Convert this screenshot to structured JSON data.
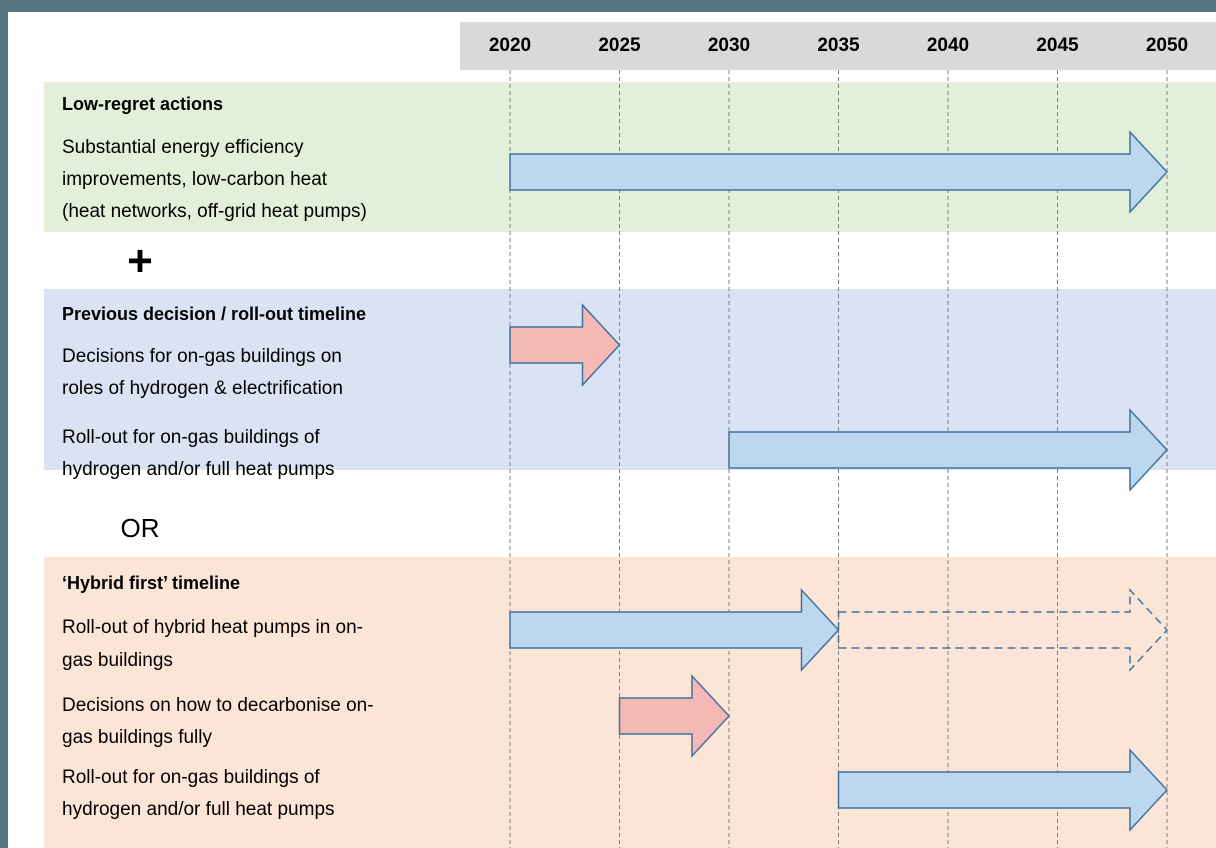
{
  "years": [
    2020,
    2025,
    2030,
    2035,
    2040,
    2045,
    2050
  ],
  "sections": [
    {
      "title": "Low-regret actions",
      "color": "#e2efda",
      "rows": [
        {
          "label": [
            "Substantial energy efficiency",
            "improvements, low-carbon heat",
            "(heat networks, off-grid heat pumps)"
          ],
          "arrows": [
            {
              "start": 2020,
              "end": 2050,
              "color": "#bdd7ee"
            }
          ]
        }
      ]
    },
    {
      "title": "Previous decision / roll-out timeline",
      "color": "#dae3f3",
      "rows": [
        {
          "label": [
            "Decisions for on-gas buildings on",
            "roles of hydrogen & electrification"
          ],
          "arrows": [
            {
              "start": 2020,
              "end": 2025,
              "color": "#f4b8b5"
            }
          ]
        },
        {
          "label": [
            "Roll-out for on-gas buildings of",
            "hydrogen and/or full heat pumps"
          ],
          "arrows": [
            {
              "start": 2030,
              "end": 2050,
              "color": "#bdd7ee"
            }
          ]
        }
      ]
    },
    {
      "title": "‘Hybrid first’ timeline",
      "color": "#fbe5d6",
      "rows": [
        {
          "label": [
            "Roll-out of hybrid heat pumps in on-",
            "gas buildings"
          ],
          "arrows": [
            {
              "start": 2020,
              "end": 2035,
              "color": "#bdd7ee"
            },
            {
              "start": 2035,
              "end": 2050,
              "color": "none",
              "style": "dashed"
            }
          ]
        },
        {
          "label": [
            "Decisions on how to decarbonise on-",
            "gas buildings fully"
          ],
          "arrows": [
            {
              "start": 2025,
              "end": 2030,
              "color": "#f4b8b5"
            }
          ]
        },
        {
          "label": [
            "Roll-out for on-gas buildings of",
            "hydrogen and/or full heat pumps"
          ],
          "arrows": [
            {
              "start": 2035,
              "end": 2050,
              "color": "#bdd7ee"
            }
          ]
        }
      ]
    }
  ],
  "connectors": [
    "+",
    "OR"
  ]
}
